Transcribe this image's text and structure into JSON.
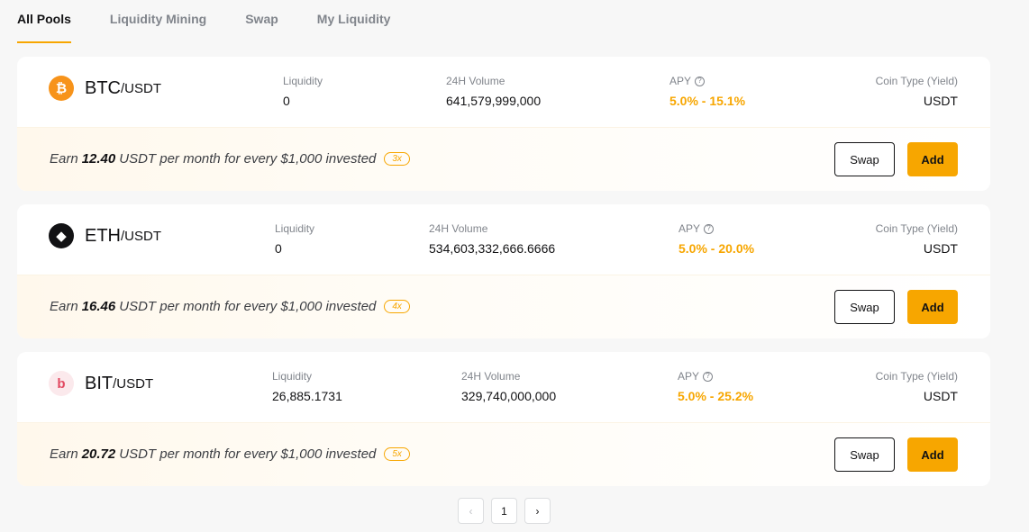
{
  "tabs": [
    {
      "label": "All Pools",
      "active": true
    },
    {
      "label": "Liquidity Mining",
      "active": false
    },
    {
      "label": "Swap",
      "active": false
    },
    {
      "label": "My Liquidity",
      "active": false
    }
  ],
  "labels": {
    "liquidity": "Liquidity",
    "volume": "24H Volume",
    "apy": "APY",
    "coin_type": "Coin Type (Yield)",
    "earn_prefix": "Earn",
    "earn_suffix": "USDT per month for every $1,000 invested",
    "swap_button": "Swap",
    "add_button": "Add"
  },
  "pools": [
    {
      "icon": "bitcoin-icon",
      "icon_glyph": "₿",
      "base": "BTC",
      "quote": "/USDT",
      "liquidity": "0",
      "volume": "641,579,999,000",
      "apy": "5.0% - 15.1%",
      "coin_type": "USDT",
      "earn": "12.40",
      "multiplier": "3x"
    },
    {
      "icon": "ethereum-icon",
      "icon_glyph": "◆",
      "base": "ETH",
      "quote": "/USDT",
      "liquidity": "0",
      "volume": "534,603,332,666.6666",
      "apy": "5.0% - 20.0%",
      "coin_type": "USDT",
      "earn": "16.46",
      "multiplier": "4x"
    },
    {
      "icon": "bit-icon",
      "icon_glyph": "b",
      "base": "BIT",
      "quote": "/USDT",
      "liquidity": "26,885.1731",
      "volume": "329,740,000,000",
      "apy": "5.0% - 25.2%",
      "coin_type": "USDT",
      "earn": "20.72",
      "multiplier": "5x"
    }
  ],
  "pagination": {
    "prev": "‹",
    "current": "1",
    "next": "›"
  },
  "colors": {
    "accent": "#f7a600",
    "background": "#f7f7f7"
  }
}
